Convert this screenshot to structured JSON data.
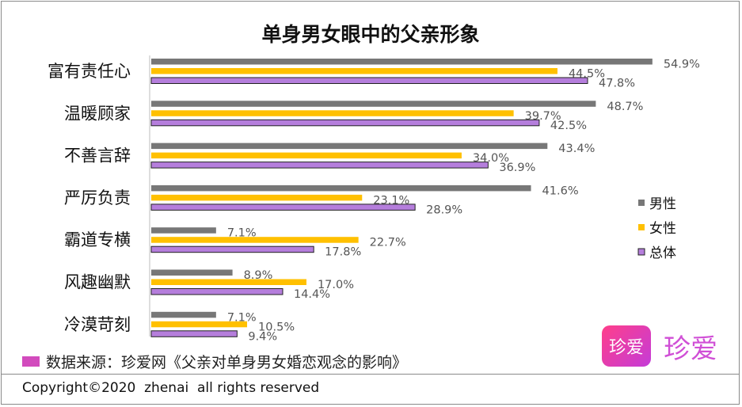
{
  "chart_data": {
    "type": "bar",
    "orientation": "horizontal",
    "title": "单身男女眼中的父亲形象",
    "categories": [
      "富有责任心",
      "温暖顾家",
      "不善言辞",
      "严厉负责",
      "霸道专横",
      "风趣幽默",
      "冷漠苛刻"
    ],
    "series": [
      {
        "name": "男性",
        "color": "#777777",
        "values": [
          54.9,
          48.7,
          43.4,
          41.6,
          7.1,
          8.9,
          7.1
        ],
        "labels": [
          "54.9%",
          "48.7%",
          "43.4%",
          "41.6%",
          "7.1%",
          "8.9%",
          "7.1%"
        ]
      },
      {
        "name": "女性",
        "color": "#ffc000",
        "values": [
          44.5,
          39.7,
          34.0,
          23.1,
          22.7,
          17.0,
          10.5
        ],
        "labels": [
          "44.5%",
          "39.7%",
          "34.0%",
          "23.1%",
          "22.7%",
          "17.0%",
          "10.5%"
        ]
      },
      {
        "name": "总体",
        "color": "#b57edc",
        "values": [
          47.8,
          42.5,
          36.9,
          28.9,
          17.8,
          14.4,
          9.4
        ],
        "labels": [
          "47.8%",
          "42.5%",
          "36.9%",
          "28.9%",
          "17.8%",
          "14.4%",
          "9.4%"
        ]
      }
    ],
    "xlim": [
      0,
      60
    ],
    "grid": false,
    "legend": "right"
  },
  "footer": {
    "source_text": "数据来源：珍爱网《父亲对单身男女婚恋观念的影响》",
    "copyright": "Copyright©2020  zhenai  all rights reserved"
  },
  "logo": {
    "badge_text": "珍爱",
    "text": "珍爱"
  }
}
